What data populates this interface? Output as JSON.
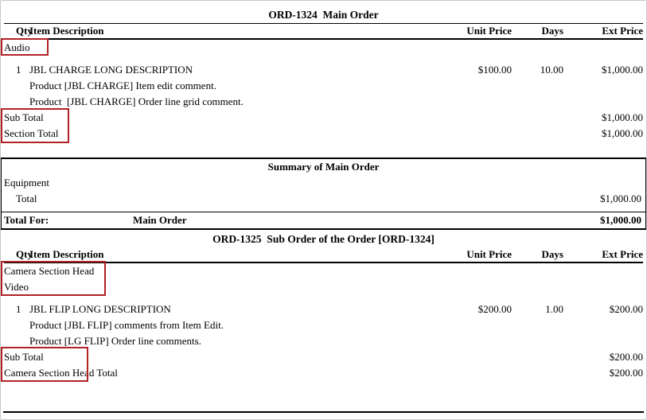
{
  "annotation_color": "#b22126",
  "orders": [
    {
      "title": "ORD-1324  Main Order",
      "columns": {
        "qty": "Qty",
        "desc": "Item Description",
        "unit": "Unit Price",
        "days": "Days",
        "ext": "Ext Price"
      },
      "section_labels": [
        "Audio"
      ],
      "items": [
        {
          "qty": "1",
          "desc": "JBL CHARGE LONG DESCRIPTION",
          "unit": "$100.00",
          "days": "10.00",
          "ext": "$1,000.00",
          "comments": [
            "Product [JBL CHARGE] Item edit comment.",
            "Product  [JBL CHARGE] Order line grid comment."
          ]
        }
      ],
      "totals": [
        {
          "label": "Sub Total",
          "value": "$1,000.00"
        },
        {
          "label": "Section Total",
          "value": "$1,000.00"
        }
      ]
    },
    {
      "title": "ORD-1325  Sub Order of the Order [ORD-1324]",
      "columns": {
        "qty": "Qty",
        "desc": "Item Description",
        "unit": "Unit Price",
        "days": "Days",
        "ext": "Ext Price"
      },
      "section_labels": [
        "Camera Section Head",
        "Video"
      ],
      "items": [
        {
          "qty": "1",
          "desc": "JBL FLIP LONG DESCRIPTION",
          "unit": "$200.00",
          "days": "1.00",
          "ext": "$200.00",
          "comments": [
            "Product [JBL FLIP] comments from Item Edit.",
            "Product [LG FLIP] Order line comments."
          ]
        }
      ],
      "totals": [
        {
          "label": "Sub Total",
          "value": "$200.00"
        },
        {
          "label": "Camera Section Head Total",
          "value": "$200.00"
        }
      ]
    }
  ],
  "summary": {
    "title": "Summary of Main Order",
    "group": "Equipment",
    "rows": [
      {
        "label": "Total",
        "value": "$1,000.00"
      }
    ],
    "total_for": {
      "label": "Total For:",
      "name": "Main Order",
      "value": "$1,000.00"
    }
  }
}
